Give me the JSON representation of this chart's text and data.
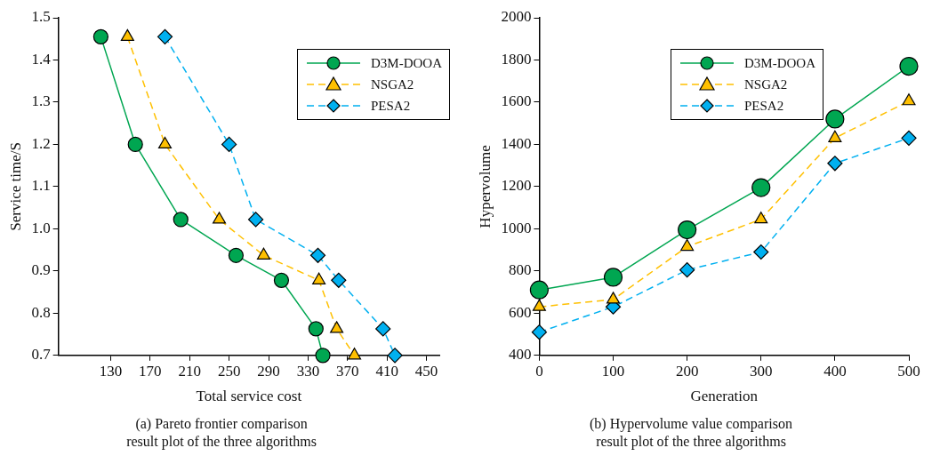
{
  "chart_data": [
    {
      "type": "line",
      "title": "(a) Pareto frontier comparison\nresult plot of the three algorithms",
      "xlabel": "Total service cost",
      "ylabel": "Service time/S",
      "xlim": [
        77,
        463
      ],
      "xticks": [
        130,
        170,
        210,
        250,
        290,
        330,
        370,
        410,
        450
      ],
      "ylim": [
        0.7,
        1.5
      ],
      "yticks": [
        0.7,
        0.8,
        0.9,
        {
          "value": 1,
          "label": "1.0"
        },
        1.1,
        1.2,
        1.3,
        1.4,
        1.5
      ],
      "grid": false,
      "legend": "top right",
      "series": [
        {
          "name": "D3M-DOOA",
          "color": "#00a651",
          "marker": "circle",
          "line_style": "solid",
          "x": [
            120,
            155,
            201,
            257,
            303,
            338,
            345
          ],
          "values": [
            1.455,
            1.2,
            1.022,
            0.937,
            0.878,
            0.763,
            0.7
          ]
        },
        {
          "name": "NSGA2",
          "color": "#ffc000",
          "marker": "triangle",
          "line_style": "dashed",
          "x": [
            147,
            185,
            240,
            285,
            341,
            359,
            377
          ],
          "values": [
            1.455,
            1.2,
            1.022,
            0.937,
            0.878,
            0.763,
            0.7
          ]
        },
        {
          "name": "PESA2",
          "color": "#00b0f0",
          "marker": "diamond",
          "line_style": "dashed",
          "x": [
            185,
            250,
            277,
            340,
            361,
            406,
            418
          ],
          "values": [
            1.455,
            1.2,
            1.022,
            0.937,
            0.878,
            0.763,
            0.7
          ]
        }
      ]
    },
    {
      "type": "line",
      "title": "(b) Hypervolume value comparison\nresult plot of the three algorithms",
      "xlabel": "Generation",
      "ylabel": "Hypervolume",
      "xlim": [
        0,
        500
      ],
      "xticks": [
        0,
        100,
        200,
        300,
        400,
        500
      ],
      "ylim": [
        400,
        2000
      ],
      "yticks": [
        400,
        600,
        800,
        1000,
        1200,
        1400,
        1600,
        1800,
        2000
      ],
      "grid": false,
      "legend": "top right",
      "x": [
        0,
        100,
        200,
        300,
        400,
        500
      ],
      "series": [
        {
          "name": "D3M-DOOA",
          "color": "#00a651",
          "marker": "circle",
          "line_style": "solid",
          "values": [
            710,
            770,
            995,
            1195,
            1520,
            1770
          ]
        },
        {
          "name": "NSGA2",
          "color": "#ffc000",
          "marker": "triangle",
          "line_style": "dashed",
          "values": [
            630,
            665,
            915,
            1045,
            1430,
            1605
          ]
        },
        {
          "name": "PESA2",
          "color": "#00b0f0",
          "marker": "diamond",
          "line_style": "dashed",
          "values": [
            510,
            630,
            805,
            890,
            1310,
            1430
          ]
        }
      ]
    }
  ]
}
